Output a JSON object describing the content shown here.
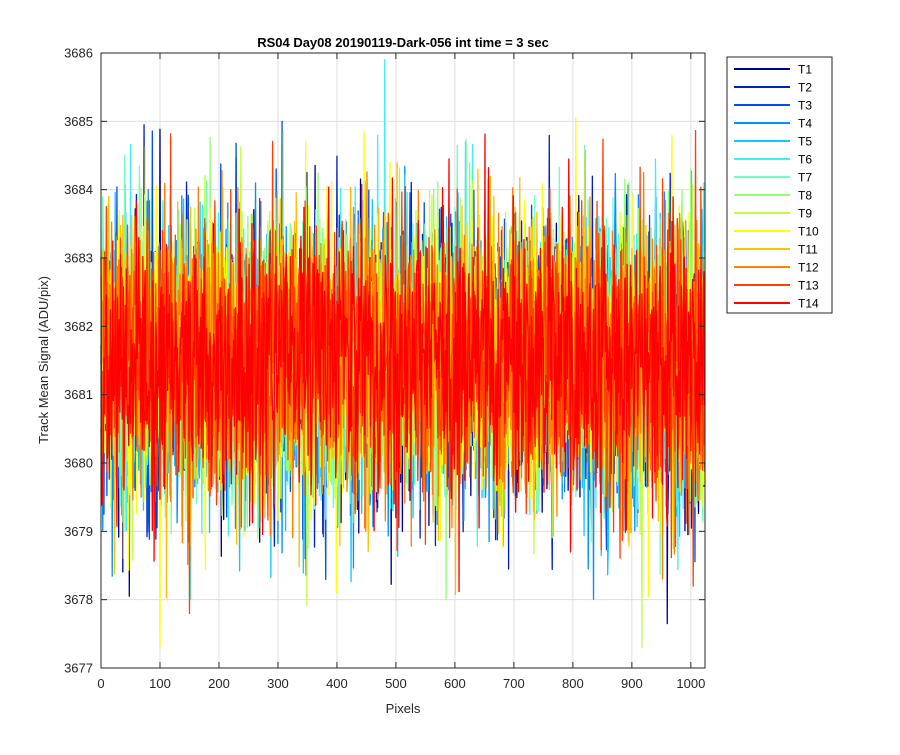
{
  "chart_data": {
    "type": "line",
    "title": "RS04 Day08 20190119-Dark-056 int time = 3 sec",
    "xlabel": "Pixels",
    "ylabel": "Track Mean Signal (ADU/pix)",
    "xlim": [
      0,
      1024
    ],
    "ylim": [
      3677,
      3686
    ],
    "x_ticks": [
      "0",
      "100",
      "200",
      "300",
      "400",
      "500",
      "600",
      "700",
      "800",
      "900",
      "1000"
    ],
    "y_ticks": [
      "3677",
      "3678",
      "3679",
      "3680",
      "3681",
      "3682",
      "3683",
      "3684",
      "3685",
      "3686"
    ],
    "grid": true,
    "legend_position": "outside-top-right",
    "n_points_per_series": 1024,
    "noise_model": {
      "mean": 3681.5,
      "typical_range": [
        3679.5,
        3683.5
      ],
      "extreme_range": [
        3677.3,
        3685.9
      ]
    },
    "series": [
      {
        "name": "T1",
        "color": "#00008f"
      },
      {
        "name": "T2",
        "color": "#0020c0"
      },
      {
        "name": "T3",
        "color": "#0050e8"
      },
      {
        "name": "T4",
        "color": "#0090ff"
      },
      {
        "name": "T5",
        "color": "#10c8ff"
      },
      {
        "name": "T6",
        "color": "#40f0f0"
      },
      {
        "name": "T7",
        "color": "#70ffc0"
      },
      {
        "name": "T8",
        "color": "#90ff70"
      },
      {
        "name": "T9",
        "color": "#c0ff40"
      },
      {
        "name": "T10",
        "color": "#ffff00"
      },
      {
        "name": "T11",
        "color": "#ffc000"
      },
      {
        "name": "T12",
        "color": "#ff8000"
      },
      {
        "name": "T13",
        "color": "#ff4000"
      },
      {
        "name": "T14",
        "color": "#ff0000"
      }
    ],
    "notable_peaks": [
      {
        "series": "T6",
        "x": 481,
        "y": 3685.9
      },
      {
        "series": "T2",
        "x": 73,
        "y": 3684.95
      },
      {
        "series": "T3",
        "x": 307,
        "y": 3685.0
      },
      {
        "series": "T10",
        "x": 805,
        "y": 3685.05
      },
      {
        "series": "T10",
        "x": 100,
        "y": 3677.3
      },
      {
        "series": "T9",
        "x": 917,
        "y": 3677.3
      },
      {
        "series": "T1",
        "x": 960,
        "y": 3677.65
      },
      {
        "series": "T13",
        "x": 150,
        "y": 3677.8
      },
      {
        "series": "T8",
        "x": 585,
        "y": 3678.0
      },
      {
        "series": "T1",
        "x": 48,
        "y": 3678.05
      }
    ]
  }
}
